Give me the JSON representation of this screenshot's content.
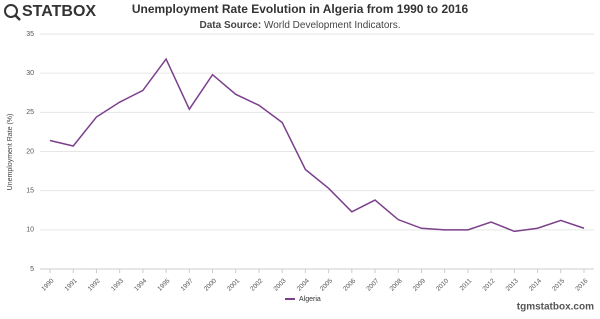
{
  "logo": "STATBOX",
  "source_site": "tgmstatbox.com",
  "chart_data": {
    "type": "line",
    "title": "Unemployment Rate Evolution in Algeria from 1990 to 2016",
    "subtitle_label": "Data Source:",
    "subtitle": "World Development Indicators.",
    "y_label": "Unemployment Rate (%)",
    "categories": [
      "1990",
      "1991",
      "1992",
      "1993",
      "1994",
      "1995",
      "1997",
      "2000",
      "2001",
      "2002",
      "2003",
      "2004",
      "2005",
      "2006",
      "2007",
      "2008",
      "2009",
      "2010",
      "2011",
      "2012",
      "2013",
      "2014",
      "2015",
      "2016"
    ],
    "series": [
      {
        "name": "Algeria",
        "color": "#7b3f8c",
        "values": [
          21.4,
          20.7,
          24.4,
          26.3,
          27.8,
          31.8,
          25.4,
          29.8,
          27.3,
          25.9,
          23.7,
          17.7,
          15.3,
          12.3,
          13.8,
          11.3,
          10.2,
          10.0,
          10.0,
          11.0,
          9.8,
          10.2,
          11.2,
          10.2
        ]
      }
    ],
    "ylim": [
      5,
      35
    ],
    "yticks": [
      5,
      10,
      15,
      20,
      25,
      30,
      35
    ],
    "grid": true,
    "legend": "bottom"
  }
}
